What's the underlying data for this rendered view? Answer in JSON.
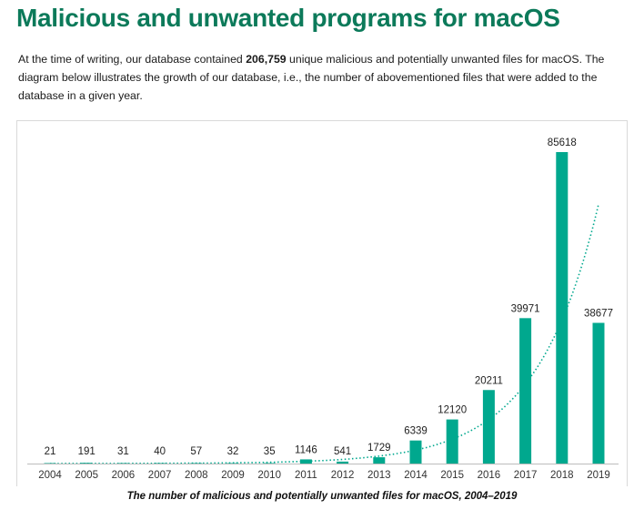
{
  "header": {
    "title": "Malicious and unwanted programs for macOS"
  },
  "intro": {
    "before": "At the time of writing, our database contained ",
    "bold": "206,759",
    "after": " unique malicious and potentially unwanted files for macOS. The diagram below illustrates the growth of our database, i.e., the number of abovementioned files that were added to the database in a given year."
  },
  "chart_data": {
    "type": "bar",
    "categories": [
      "2004",
      "2005",
      "2006",
      "2007",
      "2008",
      "2009",
      "2010",
      "2011",
      "2012",
      "2013",
      "2014",
      "2015",
      "2016",
      "2017",
      "2018",
      "2019"
    ],
    "values": [
      21,
      191,
      31,
      40,
      57,
      32,
      35,
      1146,
      541,
      1729,
      6339,
      12120,
      20211,
      39971,
      85618,
      38677
    ],
    "ylim": [
      0,
      90000
    ],
    "trendline": "exponential, dotted",
    "grid": false,
    "legend": "none",
    "bar_color": "#00a88e",
    "trend_color": "#00a88e",
    "title": "",
    "xlabel": "",
    "ylabel": ""
  },
  "caption": "The number of malicious and potentially unwanted files for macOS, 2004–2019"
}
